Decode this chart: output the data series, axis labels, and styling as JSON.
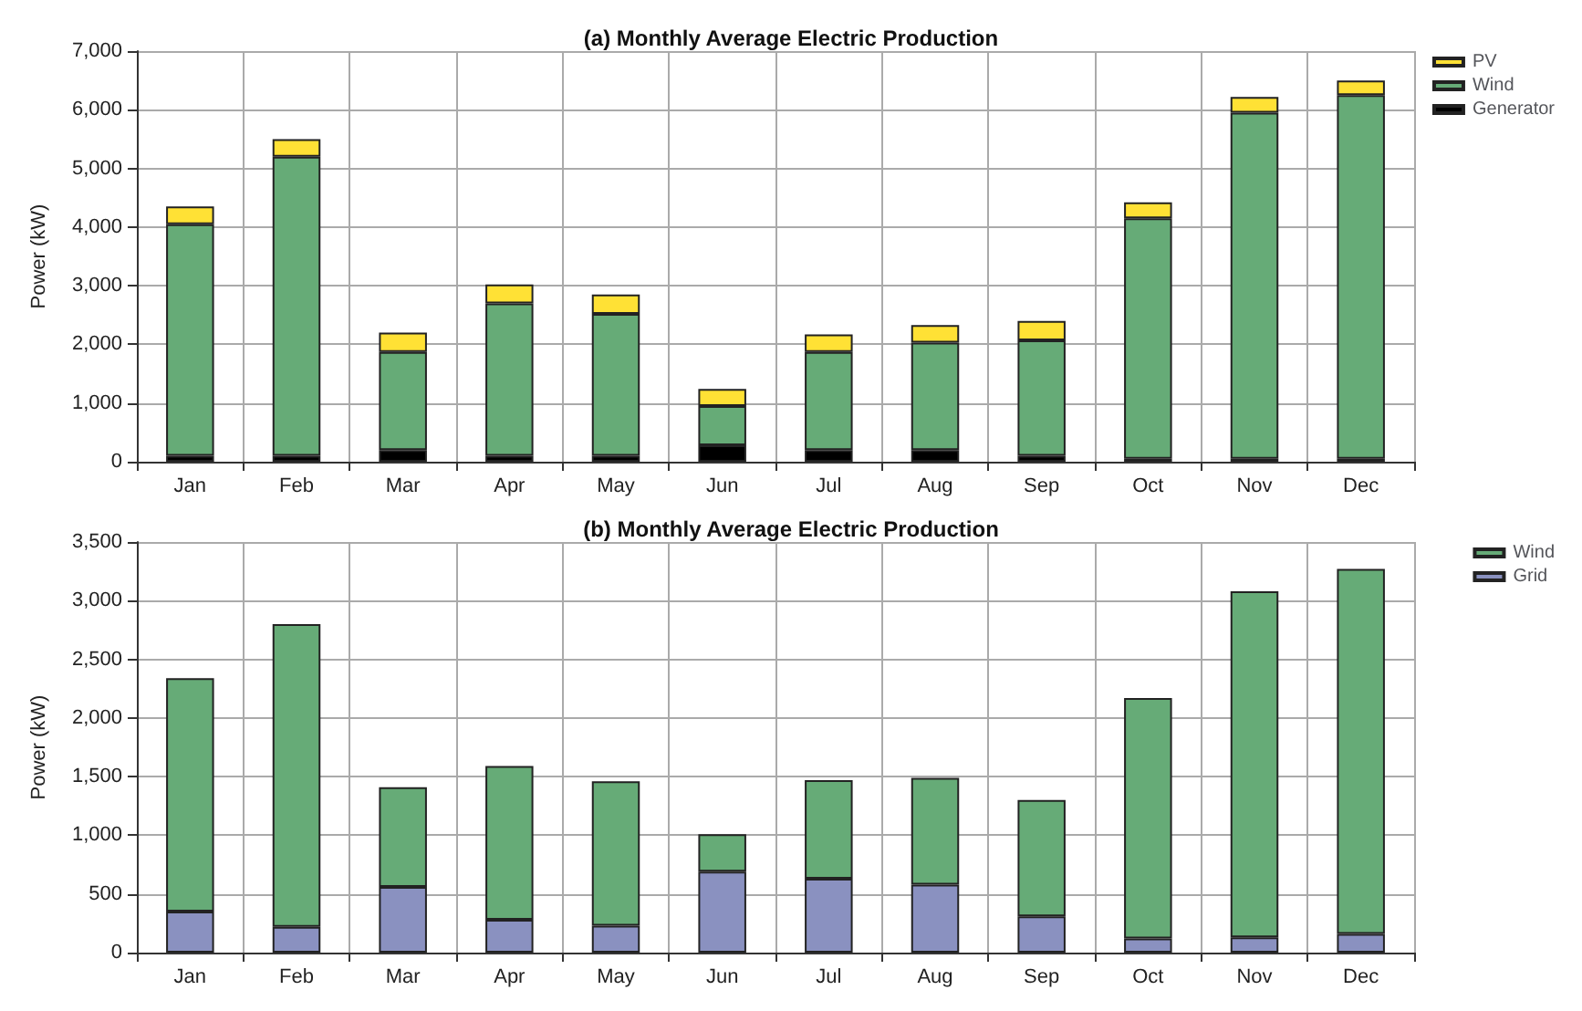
{
  "chart_data": [
    {
      "type": "bar",
      "title": "(a) Monthly Average Electric Production",
      "ylabel": "Power (kW)",
      "stacked": true,
      "grid": true,
      "legend": "top right",
      "categories": [
        "Jan",
        "Feb",
        "Mar",
        "Apr",
        "May",
        "Jun",
        "Jul",
        "Aug",
        "Sep",
        "Oct",
        "Nov",
        "Dec"
      ],
      "ylim": [
        0,
        7000
      ],
      "yticks": [
        {
          "value": 0,
          "label": "0"
        },
        {
          "value": 1000,
          "label": "1,000"
        },
        {
          "value": 2000,
          "label": "2,000"
        },
        {
          "value": 3000,
          "label": "3,000"
        },
        {
          "value": 4000,
          "label": "4,000"
        },
        {
          "value": 5000,
          "label": "5,000"
        },
        {
          "value": 6000,
          "label": "6,000"
        },
        {
          "value": 7000,
          "label": "7,000"
        }
      ],
      "series": [
        {
          "name": "Generator",
          "color": "#000000",
          "values": [
            100,
            100,
            200,
            100,
            100,
            280,
            200,
            200,
            100,
            50,
            50,
            50
          ]
        },
        {
          "name": "Wind",
          "color": "#66ab77",
          "values": [
            3950,
            5100,
            1670,
            2600,
            2420,
            670,
            1670,
            1830,
            1970,
            4100,
            5900,
            6200
          ]
        },
        {
          "name": "PV",
          "color": "#ffe135",
          "values": [
            300,
            300,
            330,
            320,
            330,
            290,
            300,
            300,
            330,
            270,
            270,
            250
          ]
        }
      ]
    },
    {
      "type": "bar",
      "title": "(b) Monthly Average Electric Production",
      "ylabel": "Power (kW)",
      "stacked": true,
      "grid": true,
      "legend": "top right",
      "categories": [
        "Jan",
        "Feb",
        "Mar",
        "Apr",
        "May",
        "Jun",
        "Jul",
        "Aug",
        "Sep",
        "Oct",
        "Nov",
        "Dec"
      ],
      "ylim": [
        0,
        3500
      ],
      "yticks": [
        {
          "value": 0,
          "label": "0"
        },
        {
          "value": 500,
          "label": "500"
        },
        {
          "value": 1000,
          "label": "1,000"
        },
        {
          "value": 1500,
          "label": "1,500"
        },
        {
          "value": 2000,
          "label": "2,000"
        },
        {
          "value": 2500,
          "label": "2,500"
        },
        {
          "value": 3000,
          "label": "3,000"
        },
        {
          "value": 3500,
          "label": "3,500"
        }
      ],
      "series": [
        {
          "name": "Grid",
          "color": "#8a91c0",
          "values": [
            350,
            220,
            560,
            280,
            230,
            690,
            630,
            580,
            310,
            120,
            130,
            160
          ]
        },
        {
          "name": "Wind",
          "color": "#66ab77",
          "values": [
            1990,
            2580,
            850,
            1310,
            1230,
            320,
            840,
            910,
            990,
            2050,
            2950,
            3110
          ]
        }
      ]
    }
  ]
}
